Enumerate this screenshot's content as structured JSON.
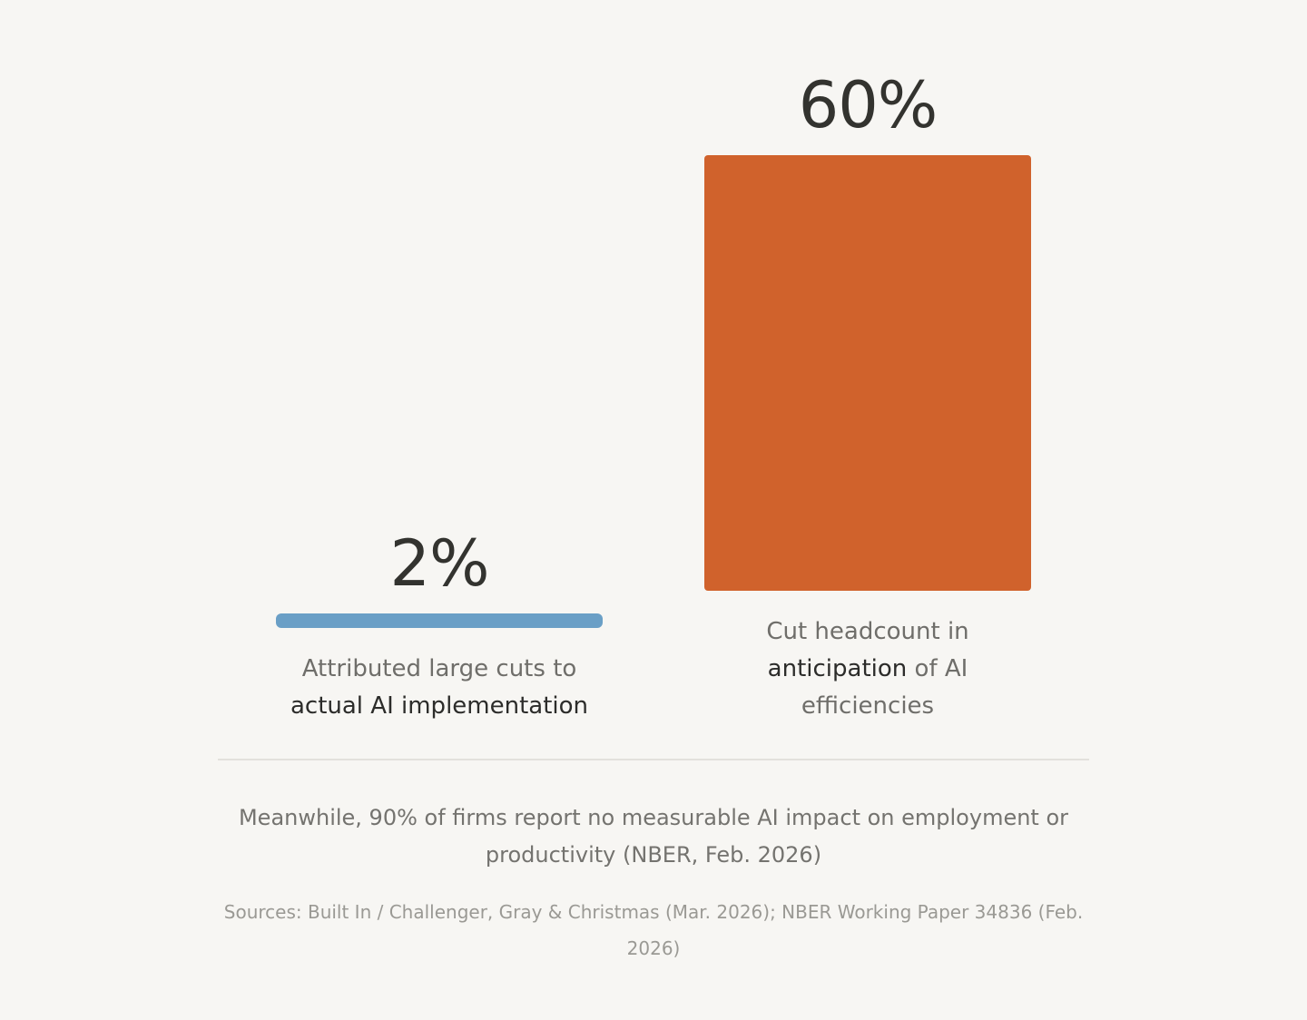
{
  "chart_data": {
    "type": "bar",
    "categories": [
      "Attributed large cuts to actual AI implementation",
      "Cut headcount in anticipation of AI efficiencies"
    ],
    "values": [
      2,
      60
    ],
    "value_labels": [
      "2%",
      "60%"
    ],
    "unit": "%",
    "ylim": [
      0,
      60
    ],
    "grid": false,
    "bars": [
      {
        "value": 2,
        "value_label": "2%",
        "color": "#6a9fc6",
        "caption_parts": [
          {
            "text": "Attributed large cuts to",
            "strong": false
          },
          {
            "text": "actual AI implementation",
            "strong": true
          }
        ]
      },
      {
        "value": 60,
        "value_label": "60%",
        "color": "#d0622c",
        "caption_parts": [
          {
            "text": "Cut headcount in",
            "strong": false
          },
          {
            "text": "anticipation",
            "strong": true
          },
          {
            "text": " of AI",
            "strong": false
          },
          {
            "text": "efficiencies",
            "strong": false
          }
        ]
      }
    ]
  },
  "footer": {
    "note": "Meanwhile, 90% of firms report no measurable AI impact on employment or productivity (NBER, Feb. 2026)",
    "sources": "Sources: Built In / Challenger, Gray & Christmas (Mar. 2026); NBER Working Paper 34836 (Feb. 2026)"
  }
}
